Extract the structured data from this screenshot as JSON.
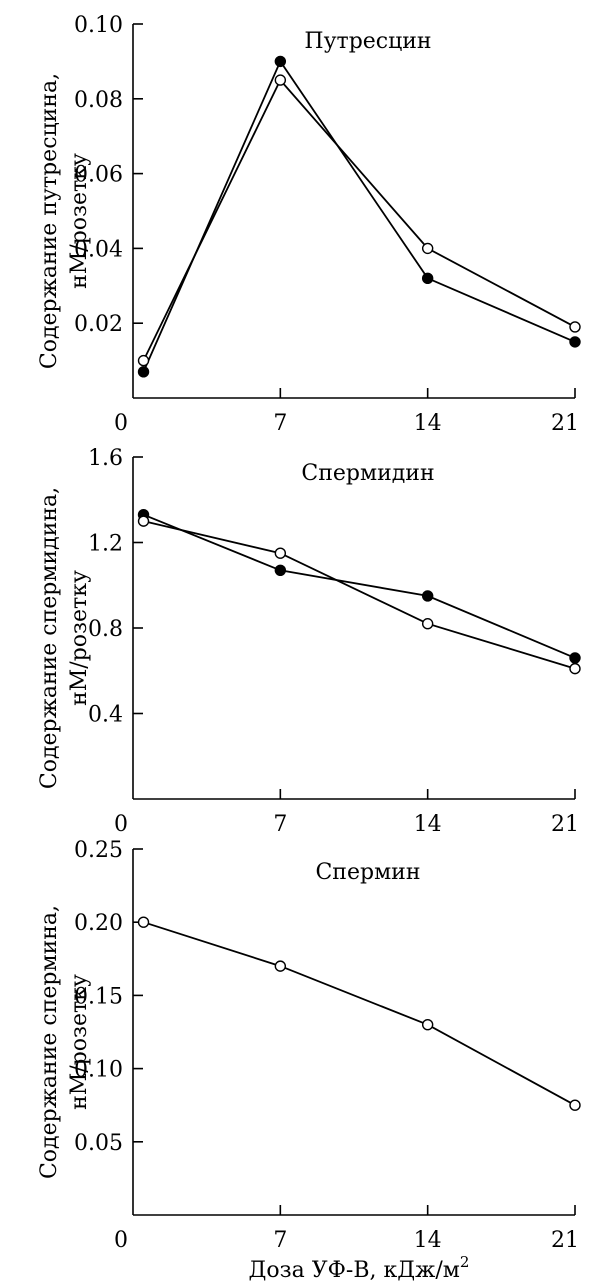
{
  "chart_data": [
    {
      "type": "line",
      "title": "Путресцин",
      "ylabel_lines": [
        "Содержание путресцина,",
        "нМ/розетку"
      ],
      "xlabel": "",
      "x_ticks": [
        "0",
        "7",
        "14",
        "21"
      ],
      "y_ticks": [
        "0.02",
        "0.04",
        "0.06",
        "0.08",
        "0.10"
      ],
      "xlim": [
        0,
        21
      ],
      "ylim": [
        0,
        0.1
      ],
      "grid": false,
      "series": [
        {
          "marker": "filled",
          "x": [
            0.5,
            7,
            14,
            21
          ],
          "y": [
            0.007,
            0.09,
            0.032,
            0.015
          ]
        },
        {
          "marker": "open",
          "x": [
            0.5,
            7,
            14,
            21
          ],
          "y": [
            0.01,
            0.085,
            0.04,
            0.019
          ]
        }
      ]
    },
    {
      "type": "line",
      "title": "Спермидин",
      "ylabel_lines": [
        "Содержание спермидина,",
        "нМ/розетку"
      ],
      "xlabel": "",
      "x_ticks": [
        "0",
        "7",
        "14",
        "21"
      ],
      "y_ticks": [
        "0.4",
        "0.8",
        "1.2",
        "1.6"
      ],
      "xlim": [
        0,
        21
      ],
      "ylim": [
        0,
        1.6
      ],
      "grid": false,
      "series": [
        {
          "marker": "filled",
          "x": [
            0.5,
            7,
            14,
            21
          ],
          "y": [
            1.33,
            1.07,
            0.95,
            0.66
          ]
        },
        {
          "marker": "open",
          "x": [
            0.5,
            7,
            14,
            21
          ],
          "y": [
            1.3,
            1.15,
            0.82,
            0.61
          ]
        }
      ]
    },
    {
      "type": "line",
      "title": "Спермин",
      "ylabel_lines": [
        "Содержание спермина,",
        "нМ/розетку"
      ],
      "xlabel": "Доза УФ-В, кДж/м",
      "xlabel_sup": "2",
      "x_ticks": [
        "0",
        "7",
        "14",
        "21"
      ],
      "y_ticks": [
        "0.05",
        "0.10",
        "0.15",
        "0.20",
        "0.25"
      ],
      "xlim": [
        0,
        21
      ],
      "ylim": [
        0,
        0.25
      ],
      "grid": false,
      "series": [
        {
          "marker": "open",
          "x": [
            0.5,
            7,
            14,
            21
          ],
          "y": [
            0.2,
            0.17,
            0.13,
            0.075
          ]
        }
      ]
    }
  ]
}
